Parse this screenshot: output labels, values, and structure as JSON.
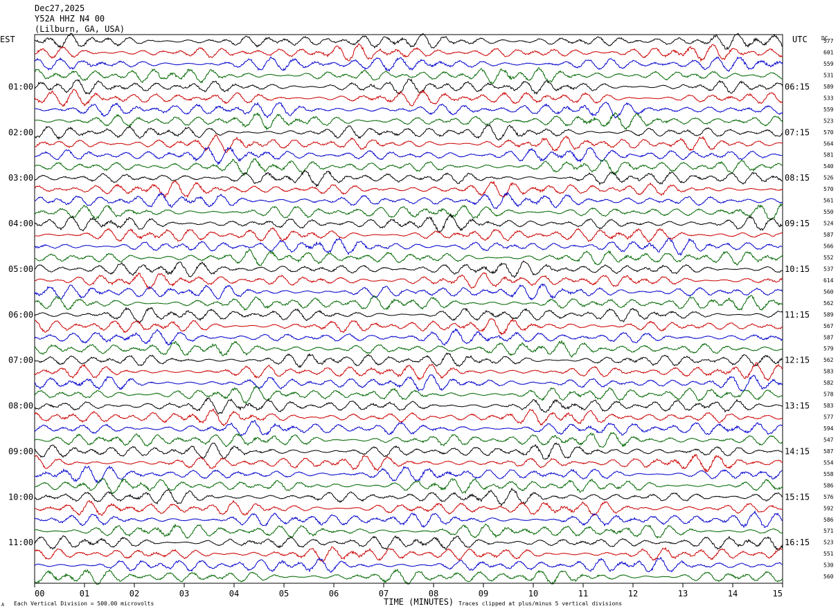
{
  "header": {
    "date": "Dec27,2025",
    "station": "Y52A HHZ N4 00",
    "location": "(Lilburn, GA, USA)"
  },
  "left_timezone": "EST",
  "right_timezone": "UTC",
  "dc_label": "DC",
  "footer": {
    "scale_note": "Each Vertical Division =  500.00 microvolts",
    "clip_note": "Traces clipped at plus/minus 5 vertical divisions",
    "corner_mark": "A"
  },
  "chart_data": {
    "type": "line",
    "xlabel": "TIME (MINUTES)",
    "xlim": [
      0,
      15
    ],
    "x_ticks": [
      "00",
      "01",
      "02",
      "03",
      "04",
      "05",
      "06",
      "07",
      "08",
      "09",
      "10",
      "11",
      "12",
      "13",
      "14",
      "15"
    ],
    "trace_minutes": 15,
    "trace_colors": [
      "#000000",
      "#cc0000",
      "#0000cc",
      "#006600"
    ],
    "left_hour_labels": [
      "01:00",
      "02:00",
      "03:00",
      "04:00",
      "05:00",
      "06:00",
      "07:00",
      "08:00",
      "09:00",
      "10:00",
      "11:00"
    ],
    "right_hour_labels": [
      "06:15",
      "07:15",
      "08:15",
      "09:15",
      "10:15",
      "11:15",
      "12:15",
      "13:15",
      "14:15",
      "15:15",
      "16:15"
    ],
    "dc_offsets": [
      577,
      601,
      559,
      531,
      589,
      533,
      559,
      523,
      570,
      564,
      581,
      540,
      526,
      570,
      561,
      550,
      524,
      587,
      566,
      552,
      537,
      614,
      560,
      562,
      589,
      567,
      587,
      579,
      562,
      583,
      582,
      578,
      583,
      577,
      594,
      547,
      587,
      554,
      558,
      586,
      576,
      592,
      586,
      571,
      523,
      551,
      530,
      560
    ],
    "clip_divisions": 5,
    "microvolts_per_division": 500.0
  }
}
